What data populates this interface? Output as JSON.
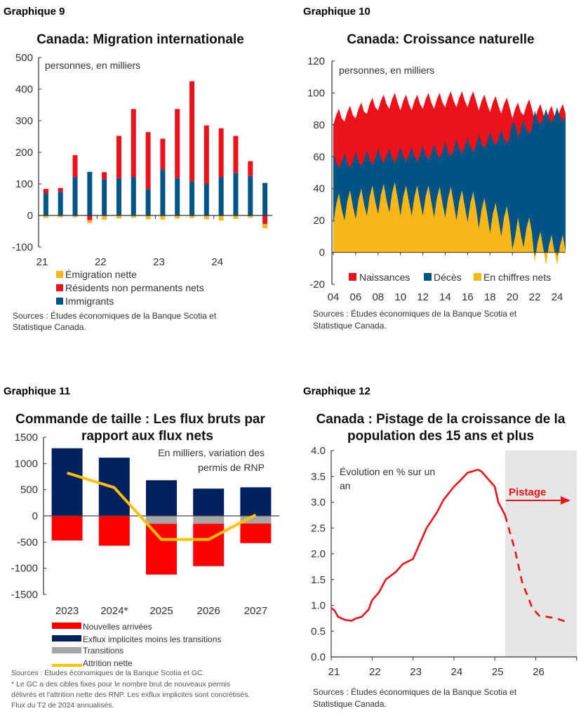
{
  "chart_data": [
    {
      "label": "Graphique 9",
      "type": "bar",
      "stacked": true,
      "title": "Canada: Migration internationale",
      "unit_note": "personnes, en milliers",
      "ylim": [
        -100,
        500
      ],
      "yticks": [
        "500",
        "400",
        "300",
        "200",
        "100",
        "0",
        "-100"
      ],
      "xtick_labels": [
        "21",
        "22",
        "23",
        "24"
      ],
      "categories": [
        "2021T1",
        "2021T2",
        "2021T3",
        "2021T4",
        "2022T1",
        "2022T2",
        "2022T3",
        "2022T4",
        "2023T1",
        "2023T2",
        "2023T3",
        "2023T4",
        "2024T1",
        "2024T2",
        "2024T3",
        "2024T4"
      ],
      "series": [
        {
          "name": "Émigration nette",
          "color": "#F7B718",
          "values": [
            -8,
            -6,
            -6,
            -9,
            -13,
            -9,
            -7,
            -12,
            -13,
            -10,
            -8,
            -12,
            -16,
            -11,
            -7,
            -13
          ]
        },
        {
          "name": "Résidents non permanents nets",
          "color": "#EC111A",
          "values": [
            14,
            12,
            69,
            -15,
            22,
            134,
            215,
            180,
            97,
            219,
            317,
            185,
            154,
            118,
            47,
            -27
          ]
        },
        {
          "name": "Immigrants",
          "color": "#005587",
          "values": [
            70,
            75,
            122,
            138,
            115,
            118,
            122,
            84,
            146,
            118,
            108,
            100,
            122,
            134,
            125,
            103
          ]
        }
      ],
      "sources": [
        "Sources : Études économiques de la Banque Scotia et",
        "Statistique Canada."
      ]
    },
    {
      "label": "Graphique 10",
      "type": "area",
      "title": "Canada: Croissance naturelle",
      "unit_note": "personnes, en milliers",
      "ylim": [
        -20,
        120
      ],
      "yticks": [
        "120",
        "100",
        "80",
        "60",
        "40",
        "20",
        "0",
        "-20"
      ],
      "xtick_labels": [
        "04",
        "06",
        "08",
        "10",
        "12",
        "14",
        "16",
        "18",
        "20",
        "22",
        "24"
      ],
      "x_start": "2004T1",
      "frequency": "trimestrielle",
      "series": [
        {
          "name": "Naissances",
          "color": "#EC111A",
          "values": [
            80,
            86,
            90,
            84,
            82,
            88,
            92,
            86,
            84,
            90,
            94,
            88,
            87,
            93,
            97,
            91,
            89,
            95,
            99,
            93,
            90,
            96,
            100,
            94,
            89,
            95,
            99,
            93,
            89,
            95,
            99,
            93,
            90,
            96,
            100,
            94,
            90,
            96,
            100,
            94,
            91,
            97,
            101,
            95,
            91,
            97,
            101,
            95,
            91,
            97,
            101,
            95,
            89,
            95,
            99,
            93,
            88,
            94,
            98,
            92,
            87,
            93,
            97,
            91,
            84,
            90,
            94,
            88,
            86,
            92,
            96,
            90,
            83,
            89,
            93,
            87,
            82,
            88,
            92,
            86,
            83,
            89,
            93,
            87
          ]
        },
        {
          "name": "Décès",
          "color": "#005587",
          "values": [
            62,
            56,
            53,
            57,
            62,
            56,
            53,
            57,
            63,
            57,
            54,
            58,
            64,
            58,
            55,
            59,
            65,
            59,
            56,
            60,
            65,
            59,
            56,
            60,
            66,
            60,
            57,
            61,
            66,
            60,
            57,
            61,
            67,
            61,
            58,
            62,
            68,
            62,
            59,
            63,
            69,
            63,
            60,
            64,
            71,
            65,
            62,
            66,
            72,
            66,
            63,
            67,
            74,
            68,
            65,
            69,
            76,
            70,
            67,
            71,
            77,
            71,
            68,
            72,
            82,
            80,
            72,
            77,
            83,
            77,
            74,
            78,
            89,
            83,
            80,
            84,
            90,
            84,
            81,
            85,
            91,
            85,
            82,
            86
          ]
        },
        {
          "name": "En chiffres nets",
          "color": "#F7B718",
          "derived": "Naissances - Décès"
        }
      ],
      "legend_position": "bottom-inside",
      "sources": [
        "Sources : Études économiques de la Banque Scotia et",
        "Statistique Canada."
      ]
    },
    {
      "label": "Graphique 11",
      "type": "bar",
      "stacked": true,
      "title": [
        "Commande de taille : Les flux bruts par",
        "rapport aux flux nets"
      ],
      "unit_note": [
        "En milliers, variation des",
        "permis de RNP"
      ],
      "ylim": [
        -1500,
        1500
      ],
      "yticks": [
        "1500",
        "1000",
        "500",
        "0",
        "-500",
        "-1000",
        "-1500"
      ],
      "categories": [
        "2023",
        "2024*",
        "2025",
        "2026",
        "2027"
      ],
      "series": [
        {
          "name": "Nouvelles arrivées",
          "color": "#FF0000",
          "values": [
            -470,
            -570,
            -970,
            -810,
            -375
          ]
        },
        {
          "name": "Exflux implicites moins les transitions",
          "color": "#002060",
          "values": [
            1290,
            1110,
            680,
            520,
            545
          ]
        },
        {
          "name": "Transitions",
          "color": "#A6A6A6",
          "values": [
            0,
            0,
            -150,
            -150,
            -145
          ]
        },
        {
          "name": "Attrition nette",
          "color": "#FFC000",
          "type": "line",
          "values": [
            820,
            540,
            -450,
            -450,
            20
          ]
        }
      ],
      "sources": [
        "Sources : Études économiques de la Banque Scotia et GC.",
        "* Le GC a des cibles fixes pour le nombre brut de nouveaux permis",
        "délivrés et l'attrition nette des RNP. Les exflux implicites sont concrétisés.",
        "Flux du T2 de 2024 annualisés."
      ]
    },
    {
      "label": "Graphique 12",
      "type": "line",
      "title": [
        "Canada : Pistage de la croissance de la",
        "population des 15 ans et plus"
      ],
      "unit_note": [
        "Évolution en % sur un",
        "an"
      ],
      "ylim": [
        0,
        4
      ],
      "yticks": [
        "4.0",
        "3.5",
        "3.0",
        "2.5",
        "2.0",
        "1.5",
        "1.0",
        "0.5",
        "0.0"
      ],
      "xtick_labels": [
        "21",
        "22",
        "23",
        "24",
        "25",
        "26"
      ],
      "xlim": [
        "2021-01",
        "2027-01"
      ],
      "shaded_from": "2025-04",
      "annotation": "Pistage",
      "color": "#EC111A",
      "series": [
        {
          "style": "solid",
          "points": [
            [
              "2021-01",
              0.95
            ],
            [
              "2021-02",
              0.9
            ],
            [
              "2021-03",
              0.78
            ],
            [
              "2021-05",
              0.72
            ],
            [
              "2021-07",
              0.7
            ],
            [
              "2021-08",
              0.74
            ],
            [
              "2021-10",
              0.78
            ],
            [
              "2021-12",
              0.92
            ],
            [
              "2022-01",
              1.1
            ],
            [
              "2022-03",
              1.25
            ],
            [
              "2022-05",
              1.5
            ],
            [
              "2022-08",
              1.65
            ],
            [
              "2022-10",
              1.8
            ],
            [
              "2023-01",
              1.9
            ],
            [
              "2023-03",
              2.2
            ],
            [
              "2023-05",
              2.5
            ],
            [
              "2023-08",
              2.8
            ],
            [
              "2023-10",
              3.05
            ],
            [
              "2024-01",
              3.3
            ],
            [
              "2024-03",
              3.43
            ],
            [
              "2024-05",
              3.57
            ],
            [
              "2024-08",
              3.63
            ],
            [
              "2024-09",
              3.6
            ],
            [
              "2024-11",
              3.45
            ],
            [
              "2025-01",
              3.3
            ],
            [
              "2025-02",
              3.0
            ],
            [
              "2025-04",
              2.75
            ]
          ]
        },
        {
          "style": "dashed",
          "points": [
            [
              "2025-04",
              2.75
            ],
            [
              "2025-07",
              2.05
            ],
            [
              "2025-09",
              1.45
            ],
            [
              "2025-12",
              0.95
            ],
            [
              "2026-02",
              0.8
            ],
            [
              "2026-07",
              0.75
            ],
            [
              "2026-10",
              0.68
            ]
          ]
        }
      ],
      "sources": [
        "Sources : Études économiques de la Banque Scotia et",
        "Statistique Canada."
      ]
    }
  ]
}
